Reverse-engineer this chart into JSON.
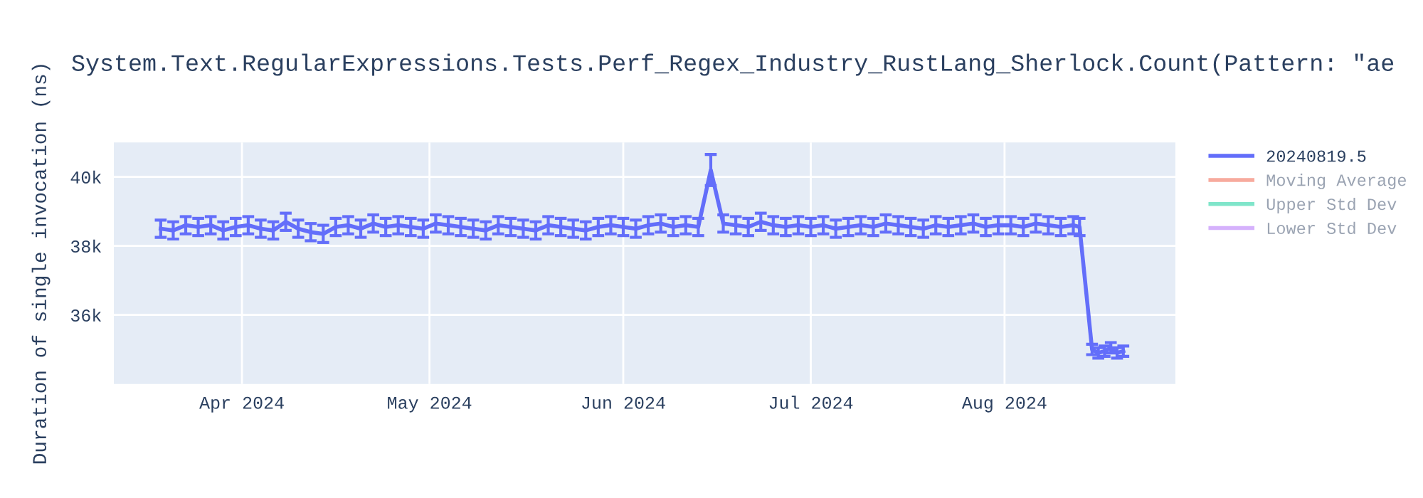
{
  "chart_data": {
    "type": "line",
    "title": "System.Text.RegularExpressions.Tests.Perf_Regex_Industry_RustLang_Sherlock.Count(Pattern: \"ae",
    "ylabel": "Duration of single invocation (ns)",
    "x": [
      "2024-03-19",
      "2024-03-21",
      "2024-03-23",
      "2024-03-25",
      "2024-03-27",
      "2024-03-29",
      "2024-03-31",
      "2024-04-02",
      "2024-04-04",
      "2024-04-06",
      "2024-04-08",
      "2024-04-10",
      "2024-04-12",
      "2024-04-14",
      "2024-04-16",
      "2024-04-18",
      "2024-04-20",
      "2024-04-22",
      "2024-04-24",
      "2024-04-26",
      "2024-04-28",
      "2024-04-30",
      "2024-05-02",
      "2024-05-04",
      "2024-05-06",
      "2024-05-08",
      "2024-05-10",
      "2024-05-12",
      "2024-05-14",
      "2024-05-16",
      "2024-05-18",
      "2024-05-20",
      "2024-05-22",
      "2024-05-24",
      "2024-05-26",
      "2024-05-28",
      "2024-05-30",
      "2024-06-01",
      "2024-06-03",
      "2024-06-05",
      "2024-06-07",
      "2024-06-09",
      "2024-06-11",
      "2024-06-13",
      "2024-06-15",
      "2024-06-17",
      "2024-06-19",
      "2024-06-21",
      "2024-06-23",
      "2024-06-25",
      "2024-06-27",
      "2024-06-29",
      "2024-07-01",
      "2024-07-03",
      "2024-07-05",
      "2024-07-07",
      "2024-07-09",
      "2024-07-11",
      "2024-07-13",
      "2024-07-15",
      "2024-07-17",
      "2024-07-19",
      "2024-07-21",
      "2024-07-23",
      "2024-07-25",
      "2024-07-27",
      "2024-07-29",
      "2024-07-31",
      "2024-08-02",
      "2024-08-04",
      "2024-08-06",
      "2024-08-08",
      "2024-08-10",
      "2024-08-12",
      "2024-08-13",
      "2024-08-15",
      "2024-08-16",
      "2024-08-17",
      "2024-08-18",
      "2024-08-19",
      "2024-08-20"
    ],
    "series": [
      {
        "name": "20240819.5",
        "color": "#636efa",
        "values": [
          38500,
          38450,
          38600,
          38550,
          38600,
          38450,
          38550,
          38600,
          38500,
          38450,
          38700,
          38500,
          38400,
          38350,
          38550,
          38600,
          38500,
          38650,
          38550,
          38600,
          38550,
          38500,
          38650,
          38600,
          38550,
          38500,
          38450,
          38600,
          38550,
          38500,
          38450,
          38600,
          38550,
          38500,
          38450,
          38550,
          38600,
          38550,
          38500,
          38600,
          38650,
          38550,
          38600,
          38550,
          40200,
          38650,
          38600,
          38550,
          38700,
          38600,
          38550,
          38600,
          38550,
          38600,
          38500,
          38550,
          38600,
          38550,
          38650,
          38600,
          38550,
          38500,
          38600,
          38550,
          38600,
          38650,
          38550,
          38600,
          38600,
          38550,
          38650,
          38600,
          38550,
          38600,
          38550,
          35000,
          34900,
          34950,
          35050,
          34900,
          34950
        ],
        "errors": [
          250,
          250,
          250,
          250,
          250,
          250,
          250,
          250,
          250,
          250,
          250,
          250,
          250,
          250,
          250,
          250,
          250,
          250,
          250,
          250,
          250,
          250,
          250,
          250,
          250,
          250,
          250,
          250,
          250,
          250,
          250,
          250,
          250,
          250,
          250,
          250,
          250,
          250,
          250,
          250,
          250,
          250,
          250,
          250,
          450,
          250,
          250,
          250,
          250,
          250,
          250,
          250,
          250,
          250,
          250,
          250,
          250,
          250,
          250,
          250,
          250,
          250,
          250,
          250,
          250,
          250,
          250,
          250,
          250,
          250,
          250,
          250,
          250,
          250,
          250,
          150,
          150,
          150,
          150,
          150,
          150
        ]
      },
      {
        "name": "Moving Average",
        "color": "#ef553b",
        "values": [
          null,
          null,
          null,
          null,
          null,
          null,
          null,
          null,
          null,
          null,
          null,
          null,
          null,
          null,
          null,
          null,
          null,
          null,
          null,
          null,
          null,
          null,
          null,
          null,
          null,
          null,
          null,
          null,
          null,
          null,
          null,
          null,
          null,
          null,
          null,
          null,
          null,
          null,
          null,
          null,
          null,
          null,
          null,
          null,
          null,
          null,
          null,
          null,
          null,
          null,
          null,
          null,
          null,
          null,
          null,
          null,
          null,
          null,
          null,
          null,
          null,
          null,
          null,
          null,
          null,
          null,
          null,
          null,
          null,
          null,
          null,
          null,
          null,
          null,
          null,
          null,
          null,
          null,
          null,
          null,
          null
        ]
      },
      {
        "name": "Upper Std Dev",
        "color": "#00cc96",
        "values": [
          null,
          null,
          null,
          null,
          null,
          null,
          null,
          null,
          null,
          null,
          null,
          null,
          null,
          null,
          null,
          null,
          null,
          null,
          null,
          null,
          null,
          null,
          null,
          null,
          null,
          null,
          null,
          null,
          null,
          null,
          null,
          null,
          null,
          null,
          null,
          null,
          null,
          null,
          null,
          null,
          null,
          null,
          null,
          null,
          null,
          null,
          null,
          null,
          null,
          null,
          null,
          null,
          null,
          null,
          null,
          null,
          null,
          null,
          null,
          null,
          null,
          null,
          null,
          null,
          null,
          null,
          null,
          null,
          null,
          null,
          null,
          null,
          null,
          null,
          null,
          null,
          null,
          null,
          null,
          null,
          null
        ]
      },
      {
        "name": "Lower Std Dev",
        "color": "#ab63fa",
        "values": [
          null,
          null,
          null,
          null,
          null,
          null,
          null,
          null,
          null,
          null,
          null,
          null,
          null,
          null,
          null,
          null,
          null,
          null,
          null,
          null,
          null,
          null,
          null,
          null,
          null,
          null,
          null,
          null,
          null,
          null,
          null,
          null,
          null,
          null,
          null,
          null,
          null,
          null,
          null,
          null,
          null,
          null,
          null,
          null,
          null,
          null,
          null,
          null,
          null,
          null,
          null,
          null,
          null,
          null,
          null,
          null,
          null,
          null,
          null,
          null,
          null,
          null,
          null,
          null,
          null,
          null,
          null,
          null,
          null,
          null,
          null,
          null,
          null,
          null,
          null,
          null,
          null,
          null,
          null,
          null,
          null
        ]
      }
    ],
    "xlim": [
      "2024-03-11T12:00",
      "2024-08-28T08:00"
    ],
    "xticks": [
      {
        "value": "2024-04-01",
        "label": "Apr 2024"
      },
      {
        "value": "2024-05-01",
        "label": "May 2024"
      },
      {
        "value": "2024-06-01",
        "label": "Jun 2024"
      },
      {
        "value": "2024-07-01",
        "label": "Jul 2024"
      },
      {
        "value": "2024-08-01",
        "label": "Aug 2024"
      }
    ],
    "ylim": [
      34000,
      41000
    ],
    "yticks": [
      {
        "value": 36000,
        "label": "36k"
      },
      {
        "value": 38000,
        "label": "38k"
      },
      {
        "value": 40000,
        "label": "40k"
      }
    ],
    "grid": true,
    "legend": "top right",
    "marker": "none",
    "line_style": "solid"
  }
}
